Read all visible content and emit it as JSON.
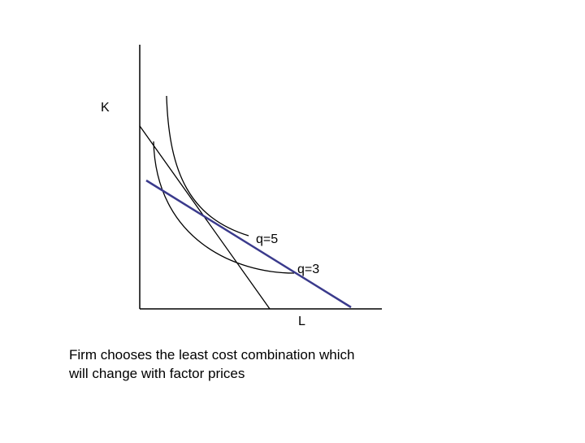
{
  "axes": {
    "y_label": "K",
    "x_label": "L"
  },
  "curves": {
    "upper_isoquant": "q=5",
    "lower_isoquant": "q=3"
  },
  "caption": [
    "Firm chooses the least cost combination which",
    "will change with factor prices"
  ]
}
